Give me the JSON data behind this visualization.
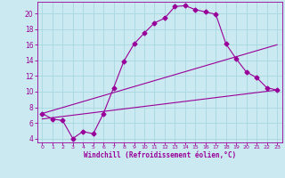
{
  "xlabel": "Windchill (Refroidissement éolien,°C)",
  "bg_color": "#cbe9f0",
  "line_color": "#990099",
  "grid_color": "#a8d8e0",
  "xlim": [
    -0.5,
    23.5
  ],
  "ylim": [
    3.5,
    21.5
  ],
  "xticks": [
    0,
    1,
    2,
    3,
    4,
    5,
    6,
    7,
    8,
    9,
    10,
    11,
    12,
    13,
    14,
    15,
    16,
    17,
    18,
    19,
    20,
    21,
    22,
    23
  ],
  "yticks": [
    4,
    6,
    8,
    10,
    12,
    14,
    16,
    18,
    20
  ],
  "line1_x": [
    0,
    1,
    2,
    3,
    4,
    5,
    6,
    7,
    8,
    9,
    10,
    11,
    12,
    13,
    14,
    15,
    16,
    17,
    18,
    19,
    20,
    21,
    22,
    23
  ],
  "line1_y": [
    7.2,
    6.5,
    6.3,
    4.0,
    4.9,
    4.6,
    7.2,
    10.5,
    13.9,
    16.1,
    17.5,
    18.8,
    19.4,
    20.9,
    21.0,
    20.5,
    20.2,
    19.9,
    16.1,
    14.2,
    12.5,
    11.8,
    10.5,
    10.2
  ],
  "line2_x": [
    0,
    23
  ],
  "line2_y": [
    6.5,
    10.2
  ],
  "line3_x": [
    0,
    23
  ],
  "line3_y": [
    7.2,
    16.0
  ]
}
